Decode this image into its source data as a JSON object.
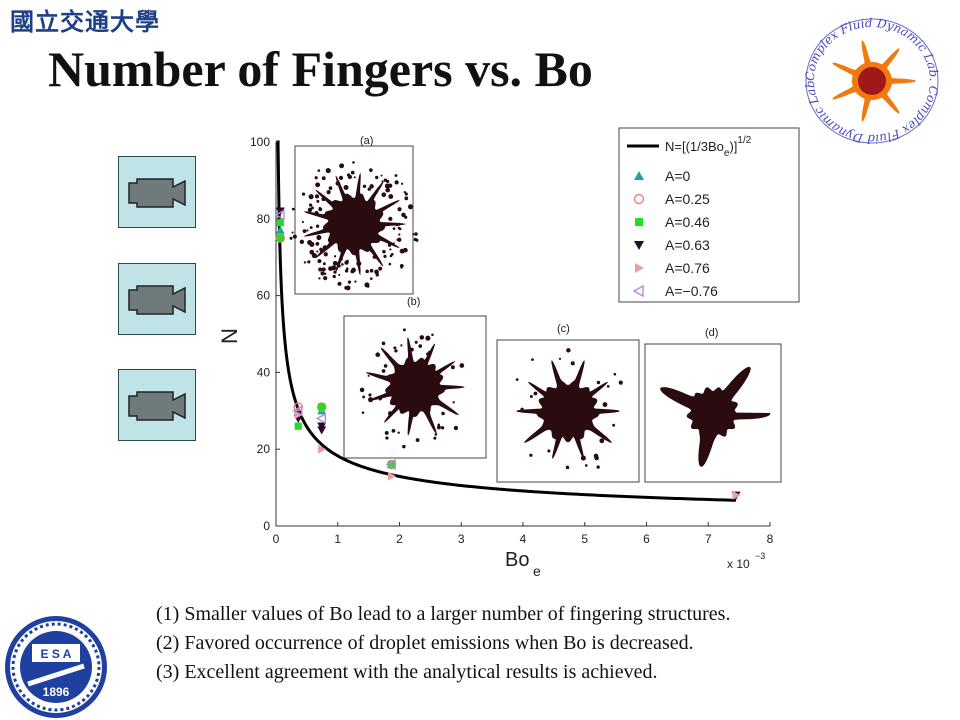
{
  "header": {
    "university_name": "國立交通大學",
    "title": "Number of Fingers vs. Bo"
  },
  "logos": {
    "lab_logo_text": "Complex Fluid Dynamic Lab. Complex Fluid Dynamic Lab.",
    "school_logo_text": "1896",
    "school_logo_letters": "E S A"
  },
  "video_buttons": [
    {
      "name": "video-1",
      "icon": "movie-camera-icon"
    },
    {
      "name": "video-2",
      "icon": "movie-camera-icon"
    },
    {
      "name": "video-3",
      "icon": "movie-camera-icon"
    }
  ],
  "bullets": [
    "(1) Smaller values of Bo lead to a larger number of fingering structures.",
    "(2) Favored occurrence of droplet emissions when Bo is decreased.",
    "(3) Excellent agreement with the analytical results is achieved."
  ],
  "chart_data": {
    "type": "scatter",
    "ylabel": "N",
    "xlabel_main": "Bo",
    "xlabel_sub": "e",
    "x_multiplier": "x 10",
    "x_multiplier_exp": "−3",
    "xlim": [
      0,
      8
    ],
    "ylim": [
      0,
      100
    ],
    "x_ticks": [
      "0",
      "1",
      "2",
      "3",
      "4",
      "5",
      "6",
      "7",
      "8"
    ],
    "y_ticks": [
      "0",
      "20",
      "40",
      "60",
      "80",
      "100"
    ],
    "legend_position": "top-right",
    "curve": {
      "label_main": "N=[(1/3Bo",
      "label_sub": "e",
      "label_tail": ")]",
      "label_exp": "1/2",
      "formula": "N = sqrt(1/(3*Bo_e)), Bo_e in units of 1e-3",
      "color": "#000000"
    },
    "series": [
      {
        "name": "A=0",
        "marker": "triangle-up",
        "color": "#1aa7a0",
        "points": [
          [
            0.07,
            77
          ],
          [
            0.36,
            30
          ],
          [
            0.74,
            30
          ],
          [
            1.87,
            16
          ]
        ]
      },
      {
        "name": "A=0.25",
        "marker": "circle-open",
        "color": "#f08080",
        "points": [
          [
            0.07,
            75
          ],
          [
            0.36,
            31
          ],
          [
            0.74,
            31
          ],
          [
            1.87,
            16
          ]
        ]
      },
      {
        "name": "A=0.46",
        "marker": "square",
        "color": "#22dd22",
        "points": [
          [
            0.07,
            79
          ],
          [
            0.07,
            75
          ],
          [
            0.36,
            26
          ],
          [
            0.74,
            31
          ],
          [
            1.87,
            16
          ]
        ]
      },
      {
        "name": "A=0.63",
        "marker": "triangle-down",
        "color": "#2a0a2a",
        "points": [
          [
            0.07,
            82
          ],
          [
            0.36,
            29
          ],
          [
            0.36,
            28
          ],
          [
            0.74,
            26
          ],
          [
            0.74,
            25
          ],
          [
            7.45,
            8
          ]
        ]
      },
      {
        "name": "A=0.76",
        "marker": "triangle-right",
        "color": "#e8a0a0",
        "points": [
          [
            0.36,
            29
          ],
          [
            0.74,
            20
          ],
          [
            1.87,
            13
          ],
          [
            7.45,
            8
          ]
        ]
      },
      {
        "name": "A=−0.76",
        "marker": "triangle-left",
        "color": "#b48cd8",
        "points": [
          [
            0.07,
            81
          ],
          [
            0.36,
            30
          ],
          [
            0.74,
            28
          ],
          [
            1.87,
            16
          ]
        ]
      }
    ],
    "insets": [
      {
        "label": "(a)",
        "fingers": 26
      },
      {
        "label": "(b)",
        "fingers": 22
      },
      {
        "label": "(c)",
        "fingers": 20
      },
      {
        "label": "(d)",
        "fingers": 7
      }
    ]
  }
}
